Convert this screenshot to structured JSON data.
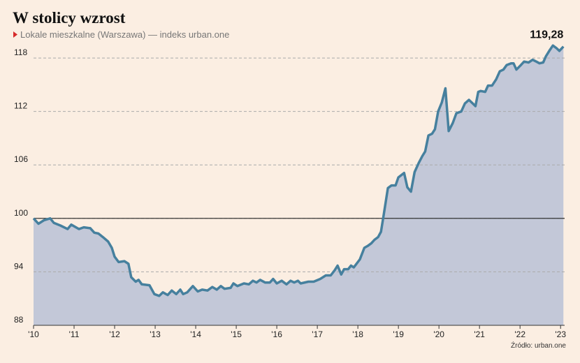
{
  "chart_data": {
    "type": "area",
    "title": "W stolicy wzrost",
    "subtitle": "Lokale mieszkalne (Warszawa) — indeks urban.one",
    "source": "Źródło: urban.one",
    "annotation": "119,28",
    "color": "#46809e",
    "fill_color": "#c3c8d8",
    "reference_line": 100,
    "grid": true,
    "xlim": [
      2010,
      2023.1
    ],
    "xticks": [
      {
        "value": 2010,
        "label": "'10"
      },
      {
        "value": 2011,
        "label": "'11"
      },
      {
        "value": 2012,
        "label": "'12"
      },
      {
        "value": 2013,
        "label": "'13"
      },
      {
        "value": 2014,
        "label": "'14"
      },
      {
        "value": 2015,
        "label": "'15"
      },
      {
        "value": 2016,
        "label": "'16"
      },
      {
        "value": 2017,
        "label": "'17"
      },
      {
        "value": 2018,
        "label": "'18"
      },
      {
        "value": 2019,
        "label": "'19"
      },
      {
        "value": 2020,
        "label": "'20"
      },
      {
        "value": 2021,
        "label": "'21"
      },
      {
        "value": 2022,
        "label": "'22"
      },
      {
        "value": 2023,
        "label": "'23"
      }
    ],
    "ylim": [
      88,
      120.2
    ],
    "yticks": [
      88,
      94,
      100,
      106,
      112,
      118
    ],
    "x": [
      2010.0,
      2010.12,
      2010.26,
      2010.41,
      2010.5,
      2010.66,
      2010.84,
      2010.93,
      2011.12,
      2011.24,
      2011.4,
      2011.5,
      2011.6,
      2011.71,
      2011.84,
      2011.93,
      2012.0,
      2012.1,
      2012.24,
      2012.34,
      2012.41,
      2012.52,
      2012.59,
      2012.67,
      2012.86,
      2012.98,
      2013.1,
      2013.19,
      2013.31,
      2013.41,
      2013.52,
      2013.62,
      2013.69,
      2013.79,
      2013.93,
      2014.05,
      2014.16,
      2014.29,
      2014.41,
      2014.52,
      2014.62,
      2014.71,
      2014.86,
      2014.93,
      2015.03,
      2015.19,
      2015.31,
      2015.41,
      2015.5,
      2015.59,
      2015.71,
      2015.83,
      2015.91,
      2016.0,
      2016.12,
      2016.24,
      2016.34,
      2016.43,
      2016.52,
      2016.59,
      2016.78,
      2016.91,
      2017.07,
      2017.21,
      2017.33,
      2017.43,
      2017.5,
      2017.59,
      2017.66,
      2017.76,
      2017.83,
      2017.9,
      2018.05,
      2018.16,
      2018.24,
      2018.33,
      2018.41,
      2018.5,
      2018.57,
      2018.64,
      2018.74,
      2018.83,
      2018.93,
      2019.0,
      2019.14,
      2019.22,
      2019.31,
      2019.4,
      2019.5,
      2019.59,
      2019.66,
      2019.74,
      2019.83,
      2019.9,
      2019.98,
      2020.07,
      2020.16,
      2020.24,
      2020.34,
      2020.43,
      2020.55,
      2020.64,
      2020.74,
      2020.81,
      2020.9,
      2020.97,
      2021.03,
      2021.14,
      2021.21,
      2021.31,
      2021.41,
      2021.5,
      2021.59,
      2021.67,
      2021.78,
      2021.84,
      2021.91,
      2022.02,
      2022.1,
      2022.21,
      2022.31,
      2022.4,
      2022.48,
      2022.57,
      2022.64,
      2022.72,
      2022.81,
      2022.9,
      2022.97,
      2023.07
    ],
    "values": [
      100.0,
      99.4,
      99.8,
      100.0,
      99.5,
      99.2,
      98.8,
      99.3,
      98.8,
      99.0,
      98.9,
      98.4,
      98.3,
      97.9,
      97.4,
      96.7,
      95.7,
      95.1,
      95.2,
      94.9,
      93.4,
      92.9,
      93.1,
      92.6,
      92.5,
      91.5,
      91.3,
      91.7,
      91.4,
      91.9,
      91.5,
      92.0,
      91.5,
      91.7,
      92.4,
      91.8,
      92.0,
      91.9,
      92.3,
      92.0,
      92.4,
      92.1,
      92.2,
      92.7,
      92.4,
      92.7,
      92.6,
      93.0,
      92.8,
      93.1,
      92.8,
      92.8,
      93.2,
      92.7,
      93.0,
      92.6,
      93.0,
      92.8,
      93.0,
      92.7,
      92.9,
      92.9,
      93.2,
      93.6,
      93.6,
      94.2,
      94.7,
      93.7,
      94.3,
      94.3,
      94.7,
      94.5,
      95.4,
      96.7,
      96.9,
      97.2,
      97.6,
      97.9,
      98.5,
      100.5,
      103.4,
      103.7,
      103.7,
      104.6,
      105.1,
      103.5,
      103.0,
      105.2,
      106.2,
      107.0,
      107.5,
      109.3,
      109.5,
      110.0,
      112.0,
      113.0,
      114.6,
      109.8,
      110.7,
      111.8,
      112.0,
      112.9,
      113.3,
      113.0,
      112.6,
      114.2,
      114.3,
      114.2,
      114.9,
      114.9,
      115.6,
      116.5,
      116.7,
      117.2,
      117.4,
      117.4,
      116.7,
      117.2,
      117.6,
      117.5,
      117.8,
      117.6,
      117.4,
      117.5,
      118.2,
      118.8,
      119.4,
      119.1,
      118.8,
      119.28
    ]
  }
}
